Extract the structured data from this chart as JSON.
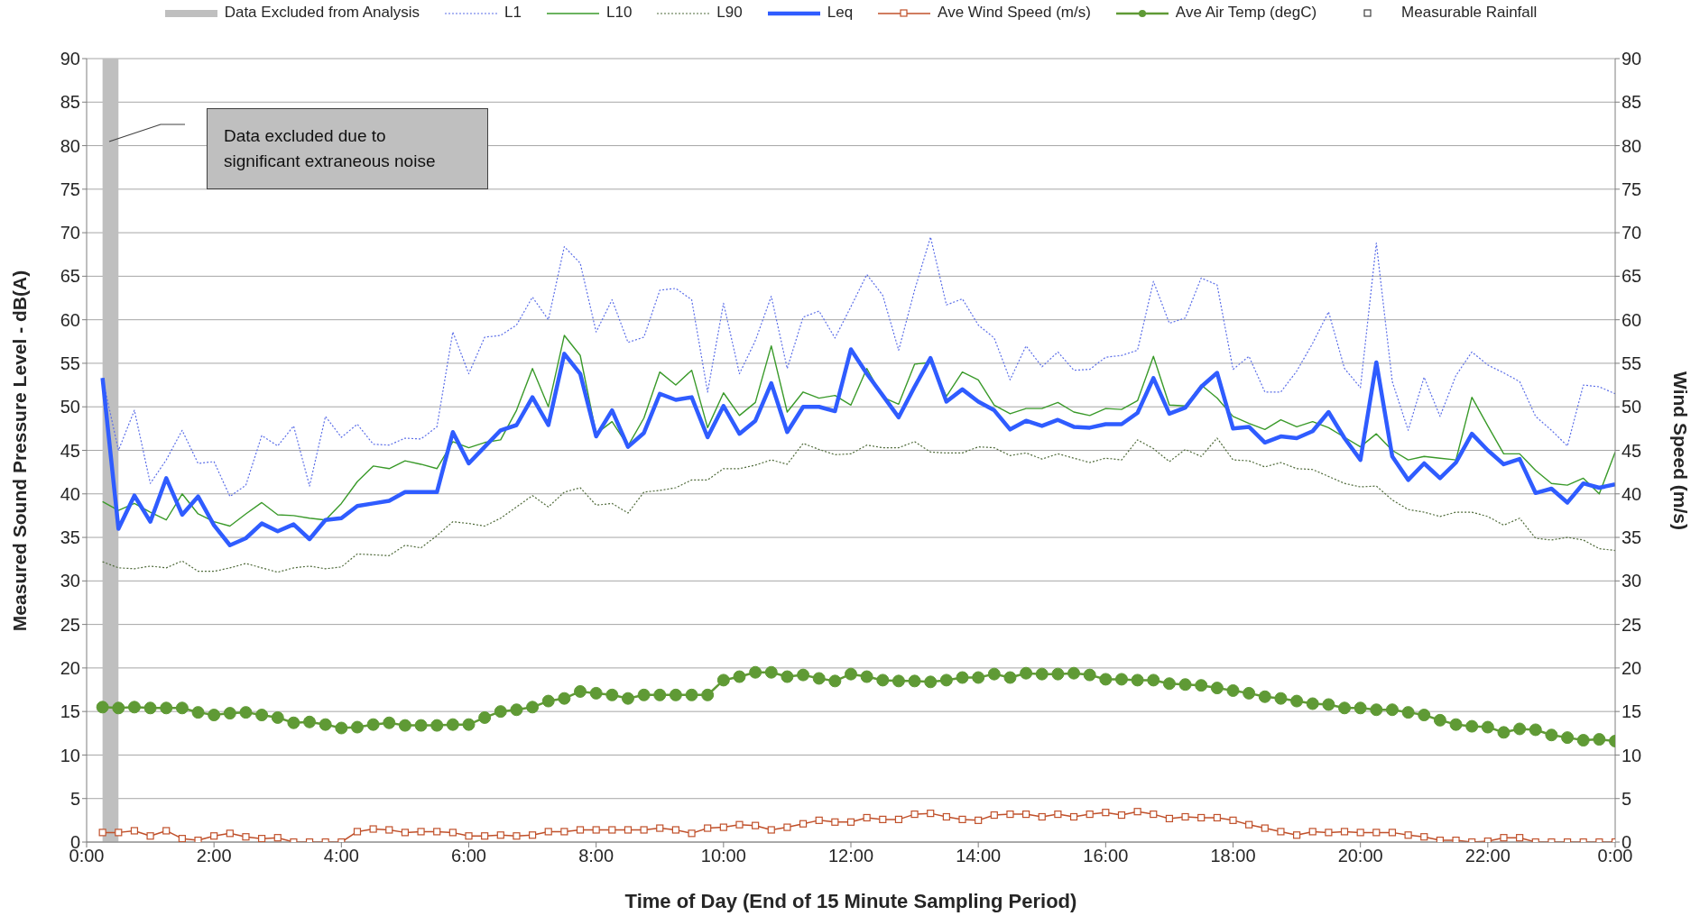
{
  "chart_data": {
    "type": "line",
    "xlabel": "Time of Day (End of 15 Minute Sampling Period)",
    "ylabel": "Measured Sound Pressure Level - dB(A)",
    "y2label": "Wind Speed (m/s)",
    "annotations": [
      "Data excluded due to significant extraneous noise"
    ],
    "x": [
      0.25,
      0.5,
      0.75,
      1,
      1.25,
      1.5,
      1.75,
      2,
      2.25,
      2.5,
      2.75,
      3,
      3.25,
      3.5,
      3.75,
      4,
      4.25,
      4.5,
      4.75,
      5,
      5.25,
      5.5,
      5.75,
      6,
      6.25,
      6.5,
      6.75,
      7,
      7.25,
      7.5,
      7.75,
      8,
      8.25,
      8.5,
      8.75,
      9,
      9.25,
      9.5,
      9.75,
      10,
      10.25,
      10.5,
      10.75,
      11,
      11.25,
      11.5,
      11.75,
      12,
      12.25,
      12.5,
      12.75,
      13,
      13.25,
      13.5,
      13.75,
      14,
      14.25,
      14.5,
      14.75,
      15,
      15.25,
      15.5,
      15.75,
      16,
      16.25,
      16.5,
      16.75,
      17,
      17.25,
      17.5,
      17.75,
      18,
      18.25,
      18.5,
      18.75,
      19,
      19.25,
      19.5,
      19.75,
      20,
      20.25,
      20.5,
      20.75,
      21,
      21.25,
      21.5,
      21.75,
      22,
      22.25,
      22.5,
      22.75,
      23,
      23.25,
      23.5,
      23.75,
      24
    ],
    "xlim": [
      0,
      24
    ],
    "xticks": [
      {
        "value": 0,
        "label": "0:00"
      },
      {
        "value": 2,
        "label": "2:00"
      },
      {
        "value": 4,
        "label": "4:00"
      },
      {
        "value": 6,
        "label": "6:00"
      },
      {
        "value": 8,
        "label": "8:00"
      },
      {
        "value": 10,
        "label": "10:00"
      },
      {
        "value": 12,
        "label": "12:00"
      },
      {
        "value": 14,
        "label": "14:00"
      },
      {
        "value": 16,
        "label": "16:00"
      },
      {
        "value": 18,
        "label": "18:00"
      },
      {
        "value": 20,
        "label": "20:00"
      },
      {
        "value": 22,
        "label": "22:00"
      },
      {
        "value": 24,
        "label": "0:00"
      }
    ],
    "ylim": [
      0,
      90
    ],
    "yticks": [
      0,
      5,
      10,
      15,
      20,
      25,
      30,
      35,
      40,
      45,
      50,
      55,
      60,
      65,
      70,
      75,
      80,
      85,
      90
    ],
    "y2lim": [
      0,
      90
    ],
    "y2ticks": [
      0,
      5,
      10,
      15,
      20,
      25,
      30,
      35,
      40,
      45,
      50,
      55,
      60,
      65,
      70,
      75,
      80,
      85,
      90
    ],
    "grid": "y",
    "legend": "top",
    "bands": [
      {
        "axis": "x",
        "from": 0.25,
        "to": 0.5,
        "label": "Data Excluded from Analysis",
        "color": "#bfbfbf"
      }
    ],
    "series": [
      {
        "name": "L1",
        "type": "line",
        "color": "#5b6ee8",
        "line_style": "dotted",
        "marker": "none",
        "values": [
          53.3,
          45.0,
          49.6,
          41.2,
          43.9,
          47.3,
          43.5,
          43.7,
          39.7,
          41.0,
          46.7,
          45.5,
          47.8,
          40.9,
          48.9,
          46.5,
          48.0,
          45.7,
          45.6,
          46.4,
          46.3,
          47.7,
          58.6,
          53.8,
          58.0,
          58.2,
          59.4,
          62.6,
          60.0,
          68.4,
          66.5,
          58.6,
          62.3,
          57.4,
          58.0,
          63.4,
          63.6,
          62.3,
          51.7,
          61.9,
          53.8,
          57.6,
          62.7,
          54.4,
          60.3,
          61.0,
          57.9,
          61.5,
          65.2,
          62.8,
          56.5,
          63.4,
          69.5,
          61.7,
          62.4,
          59.4,
          57.9,
          53.1,
          57.0,
          54.6,
          56.3,
          54.2,
          54.3,
          55.7,
          55.9,
          56.5,
          64.4,
          59.6,
          60.2,
          64.8,
          64.0,
          54.3,
          55.8,
          51.7,
          51.7,
          54.1,
          57.3,
          60.9,
          54.4,
          52.2,
          68.8,
          52.9,
          47.3,
          53.4,
          48.9,
          53.6,
          56.3,
          54.8,
          53.9,
          52.9,
          48.9,
          47.3,
          45.5,
          52.5,
          52.3,
          51.5
        ]
      },
      {
        "name": "L10",
        "type": "line",
        "color": "#3a9a2a",
        "line_style": "solid",
        "marker": "none",
        "values": [
          39.1,
          38.1,
          38.9,
          37.9,
          37.0,
          40.0,
          37.7,
          36.8,
          36.3,
          37.7,
          39.0,
          37.6,
          37.5,
          37.2,
          37.0,
          38.9,
          41.4,
          43.2,
          42.9,
          43.8,
          43.4,
          42.9,
          46.0,
          45.3,
          45.9,
          46.2,
          49.6,
          54.4,
          50.0,
          58.2,
          55.9,
          46.9,
          48.3,
          45.5,
          48.7,
          54.0,
          52.5,
          54.2,
          47.6,
          51.6,
          49.0,
          50.5,
          57.0,
          49.4,
          51.7,
          51.0,
          51.3,
          50.2,
          54.4,
          51.1,
          50.3,
          54.9,
          55.1,
          51.2,
          54.0,
          53.1,
          50.2,
          49.2,
          49.8,
          49.8,
          50.5,
          49.4,
          49.0,
          49.8,
          49.7,
          50.7,
          55.8,
          50.2,
          50.1,
          52.5,
          51.0,
          48.9,
          48.1,
          47.4,
          48.5,
          47.7,
          48.3,
          47.6,
          46.5,
          45.4,
          46.9,
          45.0,
          43.9,
          44.3,
          44.1,
          43.9,
          51.1,
          47.8,
          44.6,
          44.6,
          42.7,
          41.2,
          41.0,
          41.8,
          40.0,
          44.8
        ]
      },
      {
        "name": "L90",
        "type": "line",
        "color": "#4f6a3a",
        "line_style": "dotted",
        "marker": "none",
        "values": [
          32.2,
          31.5,
          31.4,
          31.7,
          31.5,
          32.3,
          31.1,
          31.1,
          31.5,
          32.0,
          31.5,
          31.0,
          31.5,
          31.7,
          31.4,
          31.6,
          33.1,
          33.0,
          32.9,
          34.1,
          33.8,
          35.2,
          36.8,
          36.6,
          36.3,
          37.2,
          38.5,
          39.8,
          38.5,
          40.2,
          40.7,
          38.7,
          38.9,
          37.8,
          40.2,
          40.4,
          40.7,
          41.6,
          41.6,
          42.9,
          42.9,
          43.3,
          43.9,
          43.4,
          45.8,
          45.1,
          44.5,
          44.6,
          45.6,
          45.3,
          45.3,
          46.0,
          44.8,
          44.7,
          44.7,
          45.4,
          45.3,
          44.4,
          44.7,
          44.0,
          44.6,
          44.1,
          43.6,
          44.1,
          43.9,
          46.2,
          45.2,
          43.7,
          45.1,
          44.3,
          46.4,
          43.9,
          43.8,
          43.1,
          43.6,
          42.9,
          42.8,
          42.0,
          41.2,
          40.8,
          40.9,
          39.3,
          38.2,
          37.9,
          37.4,
          37.9,
          37.9,
          37.4,
          36.4,
          37.2,
          34.9,
          34.7,
          35.0,
          34.7,
          33.7,
          33.5
        ]
      },
      {
        "name": "Leq",
        "type": "line",
        "color": "#2f5cff",
        "line_style": "solid",
        "marker": "none",
        "values": [
          53.3,
          36.0,
          39.8,
          36.8,
          41.8,
          37.6,
          39.7,
          36.4,
          34.1,
          34.9,
          36.6,
          35.7,
          36.5,
          34.8,
          37.0,
          37.2,
          38.6,
          38.9,
          39.2,
          40.2,
          40.2,
          40.2,
          47.1,
          43.5,
          45.4,
          47.3,
          47.9,
          51.1,
          47.9,
          56.1,
          53.8,
          46.6,
          49.6,
          45.4,
          47.0,
          51.5,
          50.8,
          51.1,
          46.5,
          50.1,
          46.9,
          48.4,
          52.7,
          47.1,
          50.0,
          50.0,
          49.5,
          56.6,
          53.8,
          51.3,
          48.8,
          52.3,
          55.6,
          50.6,
          52.0,
          50.6,
          49.6,
          47.4,
          48.4,
          47.8,
          48.5,
          47.7,
          47.6,
          48.0,
          48.0,
          49.3,
          53.3,
          49.2,
          49.9,
          52.3,
          53.9,
          47.5,
          47.7,
          45.9,
          46.6,
          46.4,
          47.2,
          49.4,
          46.4,
          43.9,
          55.1,
          44.3,
          41.6,
          43.5,
          41.8,
          43.6,
          46.9,
          45.0,
          43.4,
          44.0,
          40.1,
          40.6,
          39.0,
          41.2,
          40.7,
          41.1
        ]
      },
      {
        "name": "Ave Wind Speed (m/s)",
        "type": "line",
        "axis": "y2",
        "color": "#c0502a",
        "line_style": "solid",
        "marker": "square",
        "values": [
          1.1,
          1.1,
          1.3,
          0.7,
          1.3,
          0.4,
          0.2,
          0.7,
          1.0,
          0.6,
          0.4,
          0.5,
          0,
          0,
          0,
          0,
          1.2,
          1.5,
          1.4,
          1.1,
          1.2,
          1.2,
          1.1,
          0.7,
          0.7,
          0.8,
          0.7,
          0.8,
          1.2,
          1.2,
          1.4,
          1.4,
          1.4,
          1.4,
          1.4,
          1.6,
          1.4,
          1.0,
          1.6,
          1.7,
          2.0,
          1.9,
          1.4,
          1.7,
          2.1,
          2.5,
          2.3,
          2.3,
          2.8,
          2.6,
          2.6,
          3.2,
          3.3,
          2.9,
          2.6,
          2.5,
          3.1,
          3.2,
          3.2,
          2.9,
          3.2,
          2.9,
          3.2,
          3.4,
          3.1,
          3.5,
          3.2,
          2.7,
          2.9,
          2.8,
          2.8,
          2.5,
          2.0,
          1.6,
          1.2,
          0.8,
          1.2,
          1.1,
          1.2,
          1.1,
          1.1,
          1.1,
          0.8,
          0.6,
          0.2,
          0.2,
          0,
          0.1,
          0.5,
          0.5,
          0,
          0,
          0,
          0,
          0,
          0
        ]
      },
      {
        "name": "Ave Air Temp (degC)",
        "type": "line",
        "color": "#5f9a35",
        "line_style": "solid",
        "marker": "circle",
        "values": [
          15.5,
          15.4,
          15.5,
          15.4,
          15.4,
          15.4,
          14.9,
          14.6,
          14.8,
          14.9,
          14.6,
          14.3,
          13.7,
          13.8,
          13.5,
          13.1,
          13.2,
          13.5,
          13.7,
          13.4,
          13.4,
          13.4,
          13.5,
          13.5,
          14.3,
          15.0,
          15.2,
          15.5,
          16.2,
          16.5,
          17.3,
          17.1,
          16.9,
          16.5,
          16.9,
          16.9,
          16.9,
          16.9,
          16.9,
          18.6,
          19.0,
          19.5,
          19.5,
          19.0,
          19.2,
          18.8,
          18.5,
          19.3,
          19.0,
          18.6,
          18.5,
          18.5,
          18.4,
          18.6,
          18.9,
          18.9,
          19.3,
          18.9,
          19.4,
          19.3,
          19.3,
          19.4,
          19.2,
          18.7,
          18.7,
          18.6,
          18.6,
          18.2,
          18.1,
          18.0,
          17.7,
          17.4,
          17.1,
          16.7,
          16.5,
          16.2,
          15.9,
          15.8,
          15.4,
          15.4,
          15.2,
          15.2,
          14.9,
          14.6,
          14.0,
          13.5,
          13.3,
          13.2,
          12.6,
          13.0,
          12.9,
          12.3,
          12.0,
          11.7,
          11.8,
          11.6
        ]
      },
      {
        "name": "Measurable Rainfall",
        "type": "scatter",
        "color": "#404040",
        "marker": "square",
        "values": [
          null,
          null,
          null,
          null,
          null,
          null,
          null,
          null,
          null,
          null,
          null,
          null,
          null,
          null,
          null,
          null,
          null,
          null,
          null,
          null,
          null,
          null,
          null,
          null,
          null,
          null,
          null,
          null,
          null,
          null,
          null,
          null,
          null,
          null,
          null,
          null,
          null,
          null,
          null,
          null,
          null,
          null,
          null,
          null,
          null,
          null,
          null,
          null,
          null,
          null,
          null,
          null,
          null,
          null,
          null,
          null,
          null,
          null,
          null,
          null,
          null,
          null,
          null,
          null,
          null,
          null,
          null,
          null,
          null,
          null,
          null,
          null,
          null,
          null,
          null,
          null,
          null,
          null,
          null,
          null,
          null,
          null,
          null,
          null,
          null,
          null,
          null,
          null,
          null,
          null,
          null,
          null,
          null,
          null,
          null,
          null
        ]
      }
    ]
  }
}
